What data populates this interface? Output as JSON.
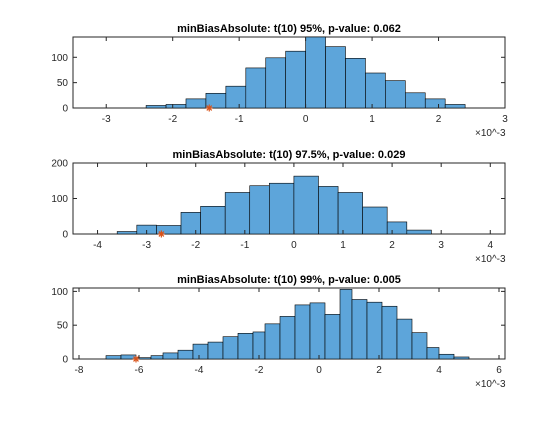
{
  "figure": {
    "background": "#ffffff",
    "bar_color": "#5DA5DA",
    "marker_color": "#D95319",
    "marker_symbol": "*"
  },
  "chart_data": [
    {
      "type": "bar",
      "title": "minBiasAbsolute: t(10) 95%, p-value: 0.062",
      "xlim": [
        -3.5,
        3.0
      ],
      "ylim": [
        0,
        140
      ],
      "x_scale_label": "×10^-3",
      "xtick_labels": [
        "-3",
        "-2",
        "-1",
        "0",
        "1",
        "2",
        "3"
      ],
      "xticks": [
        -3,
        -2,
        -1,
        0,
        1,
        2,
        3
      ],
      "ytick_labels": [
        "0",
        "50",
        "100"
      ],
      "yticks": [
        0,
        50,
        100
      ],
      "bin_edges": [
        -2.4,
        -2.1,
        -1.8,
        -1.5,
        -1.2,
        -0.9,
        -0.6,
        -0.3,
        0,
        0.3,
        0.6,
        0.9,
        1.2,
        1.5,
        1.8,
        2.1,
        2.4
      ],
      "values": [
        5,
        7,
        18,
        29,
        43,
        79,
        99,
        112,
        141,
        121,
        98,
        69,
        54,
        30,
        18,
        7,
        2
      ],
      "marker_x": -1.45,
      "marker_y": 0
    },
    {
      "type": "bar",
      "title": "minBiasAbsolute: t(10) 97.5%, p-value: 0.029",
      "xlim": [
        -4.5,
        4.3
      ],
      "ylim": [
        0,
        200
      ],
      "x_scale_label": "×10^-3",
      "xtick_labels": [
        "-4",
        "-3",
        "-2",
        "-1",
        "0",
        "1",
        "2",
        "3",
        "4"
      ],
      "xticks": [
        -4,
        -3,
        -2,
        -1,
        0,
        1,
        2,
        3,
        4
      ],
      "ytick_labels": [
        "0",
        "100",
        "200"
      ],
      "yticks": [
        0,
        100,
        200
      ],
      "bin_edges": [
        -3.6,
        -3.2,
        -2.8,
        -2.3,
        -1.9,
        -1.4,
        -0.9,
        -0.5,
        0,
        0.5,
        0.9,
        1.4,
        1.9,
        2.3,
        2.8
      ],
      "values": [
        7,
        25,
        24,
        61,
        78,
        117,
        136,
        143,
        163,
        134,
        117,
        76,
        34,
        11
      ],
      "marker_x": -2.7,
      "marker_y": 0
    },
    {
      "type": "bar",
      "title": "minBiasAbsolute: t(10) 99%, p-value: 0.005",
      "xlim": [
        -8.2,
        6.2
      ],
      "ylim": [
        0,
        105
      ],
      "x_scale_label": "×10^-3",
      "xtick_labels": [
        "-8",
        "-6",
        "-4",
        "-2",
        "0",
        "2",
        "4",
        "6"
      ],
      "xticks": [
        -8,
        -6,
        -4,
        -2,
        0,
        2,
        4,
        6
      ],
      "ytick_labels": [
        "0",
        "50",
        "100"
      ],
      "yticks": [
        0,
        50,
        100
      ],
      "bin_edges": [
        -7.1,
        -6.6,
        -6.1,
        -5.6,
        -5.2,
        -4.7,
        -4.2,
        -3.7,
        -3.2,
        -2.7,
        -2.2,
        -1.8,
        -1.3,
        -0.8,
        -0.3,
        0.2,
        0.7,
        1.1,
        1.6,
        2.1,
        2.6,
        3.1,
        3.6,
        4.0,
        4.5,
        5.0
      ],
      "values": [
        5,
        6,
        2,
        5,
        9,
        13,
        22,
        25,
        33,
        38,
        40,
        52,
        63,
        80,
        83,
        66,
        103,
        88,
        84,
        78,
        59,
        39,
        17,
        7,
        3
      ],
      "marker_x": -6.1,
      "marker_y": 0
    }
  ]
}
